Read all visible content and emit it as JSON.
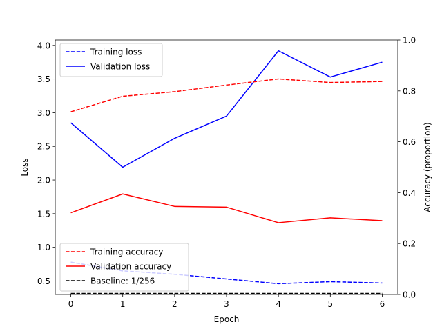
{
  "chart_data": {
    "type": "line",
    "title": "",
    "xlabel": "Epoch",
    "ylabel_left": "Loss",
    "ylabel_right": "Accuracy (proportion)",
    "x": [
      0,
      1,
      2,
      3,
      4,
      5,
      6
    ],
    "x_ticks": [
      "0",
      "1",
      "2",
      "3",
      "4",
      "5",
      "6"
    ],
    "ylim_left": [
      0.3,
      4.08
    ],
    "yticks_left": [
      "0.5",
      "1.0",
      "1.5",
      "2.0",
      "2.5",
      "3.0",
      "3.5",
      "4.0"
    ],
    "ylim_right": [
      0.0,
      1.0
    ],
    "yticks_right": [
      "0.0",
      "0.2",
      "0.4",
      "0.6",
      "0.8",
      "1.0"
    ],
    "grid": false,
    "legend_left": {
      "placement": "top-left",
      "entries": [
        "Training loss",
        "Validation loss"
      ]
    },
    "legend_right": {
      "placement": "bottom-left",
      "entries": [
        "Training accuracy",
        "Validation accuracy",
        "Baseline: 1/256"
      ]
    },
    "series": [
      {
        "name": "Training loss",
        "axis": "left",
        "color": "#0000ff",
        "style": "dashed",
        "values": [
          0.78,
          0.65,
          0.6,
          0.53,
          0.46,
          0.49,
          0.47
        ]
      },
      {
        "name": "Validation loss",
        "axis": "left",
        "color": "#0000ff",
        "style": "solid",
        "values": [
          2.85,
          2.19,
          2.62,
          2.95,
          3.92,
          3.53,
          3.75
        ]
      },
      {
        "name": "Training accuracy",
        "axis": "right",
        "color": "#ff0000",
        "style": "dashed",
        "values": [
          0.718,
          0.779,
          0.797,
          0.823,
          0.847,
          0.833,
          0.837
        ]
      },
      {
        "name": "Validation accuracy",
        "axis": "right",
        "color": "#ff0000",
        "style": "solid",
        "values": [
          0.321,
          0.395,
          0.346,
          0.343,
          0.282,
          0.301,
          0.29
        ]
      },
      {
        "name": "Baseline: 1/256",
        "axis": "right",
        "color": "#000000",
        "style": "dashed",
        "values": [
          0.0039,
          0.0039,
          0.0039,
          0.0039,
          0.0039,
          0.0039,
          0.0039
        ]
      }
    ]
  }
}
